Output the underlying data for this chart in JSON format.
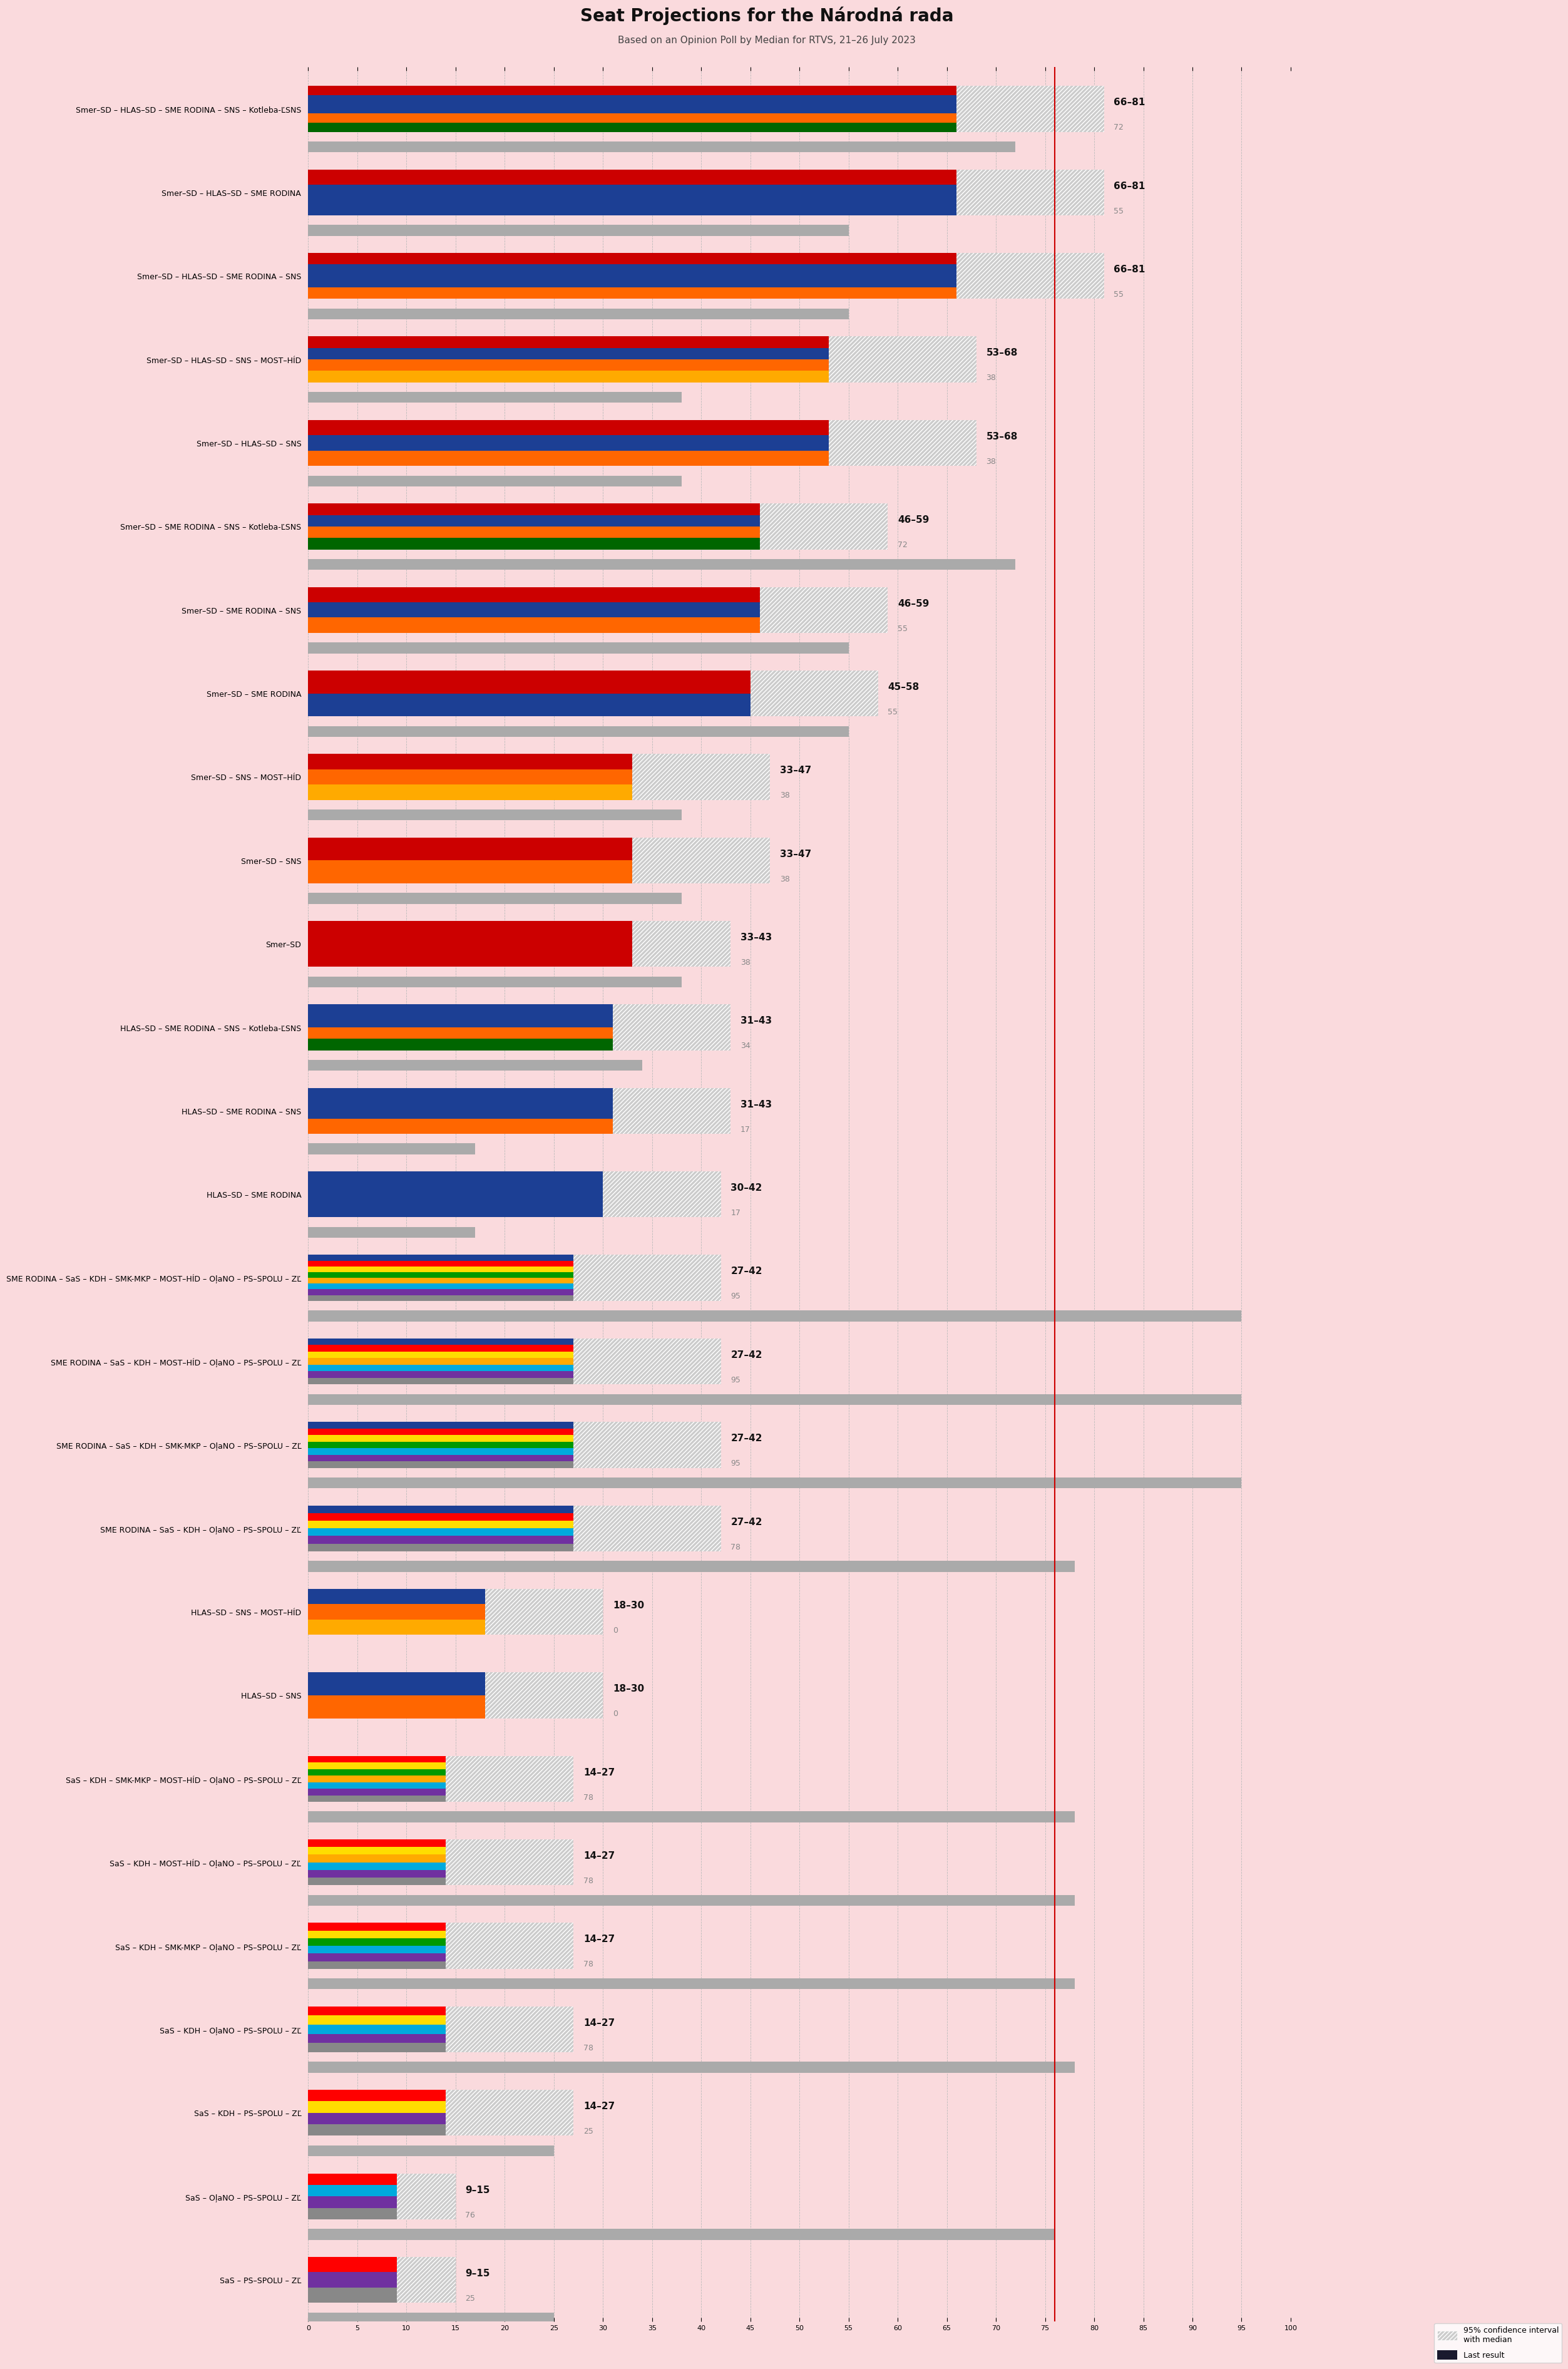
{
  "title": "Seat Projections for the Národná rada",
  "subtitle": "Based on an Opinion Poll by Median for RTVS, 21–26 July 2023",
  "background_color": "#fadadd",
  "coalitions": [
    {
      "label": "Smer–SD – HLAS–SD – SME RODINA – SNS – Kotleba-ĽSNS",
      "low": 66,
      "high": 81,
      "last": 72,
      "colors": [
        "#cc0000",
        "#1c3f94",
        "#1c3f94",
        "#ff6600",
        "#006600"
      ]
    },
    {
      "label": "Smer–SD – HLAS–SD – SME RODINA",
      "low": 66,
      "high": 81,
      "last": 55,
      "colors": [
        "#cc0000",
        "#1c3f94",
        "#1c3f94"
      ]
    },
    {
      "label": "Smer–SD – HLAS–SD – SME RODINA – SNS",
      "low": 66,
      "high": 81,
      "last": 55,
      "colors": [
        "#cc0000",
        "#1c3f94",
        "#1c3f94",
        "#ff6600"
      ]
    },
    {
      "label": "Smer–SD – HLAS–SD – SNS – MOST–HÍD",
      "low": 53,
      "high": 68,
      "last": 38,
      "colors": [
        "#cc0000",
        "#1c3f94",
        "#ff6600",
        "#ffaa00"
      ]
    },
    {
      "label": "Smer–SD – HLAS–SD – SNS",
      "low": 53,
      "high": 68,
      "last": 38,
      "colors": [
        "#cc0000",
        "#1c3f94",
        "#ff6600"
      ]
    },
    {
      "label": "Smer–SD – SME RODINA – SNS – Kotleba-ĽSNS",
      "low": 46,
      "high": 59,
      "last": 72,
      "colors": [
        "#cc0000",
        "#1c3f94",
        "#ff6600",
        "#006600"
      ]
    },
    {
      "label": "Smer–SD – SME RODINA – SNS",
      "low": 46,
      "high": 59,
      "last": 55,
      "colors": [
        "#cc0000",
        "#1c3f94",
        "#ff6600"
      ]
    },
    {
      "label": "Smer–SD – SME RODINA",
      "low": 45,
      "high": 58,
      "last": 55,
      "colors": [
        "#cc0000",
        "#1c3f94"
      ]
    },
    {
      "label": "Smer–SD – SNS – MOST–HÍD",
      "low": 33,
      "high": 47,
      "last": 38,
      "colors": [
        "#cc0000",
        "#ff6600",
        "#ffaa00"
      ]
    },
    {
      "label": "Smer–SD – SNS",
      "low": 33,
      "high": 47,
      "last": 38,
      "colors": [
        "#cc0000",
        "#ff6600"
      ]
    },
    {
      "label": "Smer–SD",
      "low": 33,
      "high": 43,
      "last": 38,
      "colors": [
        "#cc0000"
      ]
    },
    {
      "label": "HLAS–SD – SME RODINA – SNS – Kotleba-ĽSNS",
      "low": 31,
      "high": 43,
      "last": 34,
      "colors": [
        "#1c3f94",
        "#1c3f94",
        "#ff6600",
        "#006600"
      ]
    },
    {
      "label": "HLAS–SD – SME RODINA – SNS",
      "low": 31,
      "high": 43,
      "last": 17,
      "colors": [
        "#1c3f94",
        "#1c3f94",
        "#ff6600"
      ]
    },
    {
      "label": "HLAS–SD – SME RODINA",
      "low": 30,
      "high": 42,
      "last": 17,
      "colors": [
        "#1c3f94",
        "#1c3f94"
      ]
    },
    {
      "label": "SME RODINA – SaS – KDH – SMK-MKP – MOST–HÍD – OļaNO – PS–SPOLU – ZĽ",
      "low": 27,
      "high": 42,
      "last": 95,
      "colors": [
        "#1c3f94",
        "#ff0000",
        "#ffdd00",
        "#009900",
        "#ffaa00",
        "#00aadd",
        "#7030a0",
        "#888888"
      ]
    },
    {
      "label": "SME RODINA – SaS – KDH – MOST–HÍD – OļaNO – PS–SPOLU – ZĽ",
      "low": 27,
      "high": 42,
      "last": 95,
      "colors": [
        "#1c3f94",
        "#ff0000",
        "#ffdd00",
        "#ffaa00",
        "#00aadd",
        "#7030a0",
        "#888888"
      ]
    },
    {
      "label": "SME RODINA – SaS – KDH – SMK-MKP – OļaNO – PS–SPOLU – ZĽ",
      "low": 27,
      "high": 42,
      "last": 95,
      "colors": [
        "#1c3f94",
        "#ff0000",
        "#ffdd00",
        "#009900",
        "#00aadd",
        "#7030a0",
        "#888888"
      ]
    },
    {
      "label": "SME RODINA – SaS – KDH – OļaNO – PS–SPOLU – ZĽ",
      "low": 27,
      "high": 42,
      "last": 78,
      "colors": [
        "#1c3f94",
        "#ff0000",
        "#ffdd00",
        "#00aadd",
        "#7030a0",
        "#888888"
      ]
    },
    {
      "label": "HLAS–SD – SNS – MOST–HÍD",
      "low": 18,
      "high": 30,
      "last": 0,
      "colors": [
        "#1c3f94",
        "#ff6600",
        "#ffaa00"
      ]
    },
    {
      "label": "HLAS–SD – SNS",
      "low": 18,
      "high": 30,
      "last": 0,
      "colors": [
        "#1c3f94",
        "#ff6600"
      ]
    },
    {
      "label": "SaS – KDH – SMK-MKP – MOST–HÍD – OļaNO – PS–SPOLU – ZĽ",
      "low": 14,
      "high": 27,
      "last": 78,
      "colors": [
        "#ff0000",
        "#ffdd00",
        "#009900",
        "#ffaa00",
        "#00aadd",
        "#7030a0",
        "#888888"
      ]
    },
    {
      "label": "SaS – KDH – MOST–HÍD – OļaNO – PS–SPOLU – ZĽ",
      "low": 14,
      "high": 27,
      "last": 78,
      "colors": [
        "#ff0000",
        "#ffdd00",
        "#ffaa00",
        "#00aadd",
        "#7030a0",
        "#888888"
      ]
    },
    {
      "label": "SaS – KDH – SMK-MKP – OļaNO – PS–SPOLU – ZĽ",
      "low": 14,
      "high": 27,
      "last": 78,
      "colors": [
        "#ff0000",
        "#ffdd00",
        "#009900",
        "#00aadd",
        "#7030a0",
        "#888888"
      ]
    },
    {
      "label": "SaS – KDH – OļaNO – PS–SPOLU – ZĽ",
      "low": 14,
      "high": 27,
      "last": 78,
      "colors": [
        "#ff0000",
        "#ffdd00",
        "#00aadd",
        "#7030a0",
        "#888888"
      ]
    },
    {
      "label": "SaS – KDH – PS–SPOLU – ZĽ",
      "low": 14,
      "high": 27,
      "last": 25,
      "colors": [
        "#ff0000",
        "#ffdd00",
        "#7030a0",
        "#888888"
      ]
    },
    {
      "label": "SaS – OļaNO – PS–SPOLU – ZĽ",
      "low": 9,
      "high": 15,
      "last": 76,
      "colors": [
        "#ff0000",
        "#00aadd",
        "#7030a0",
        "#888888"
      ]
    },
    {
      "label": "SaS – PS–SPOLU – ZĽ",
      "low": 9,
      "high": 15,
      "last": 25,
      "colors": [
        "#ff0000",
        "#7030a0",
        "#888888"
      ]
    }
  ],
  "majority_line": 76,
  "xlim_max": 100
}
